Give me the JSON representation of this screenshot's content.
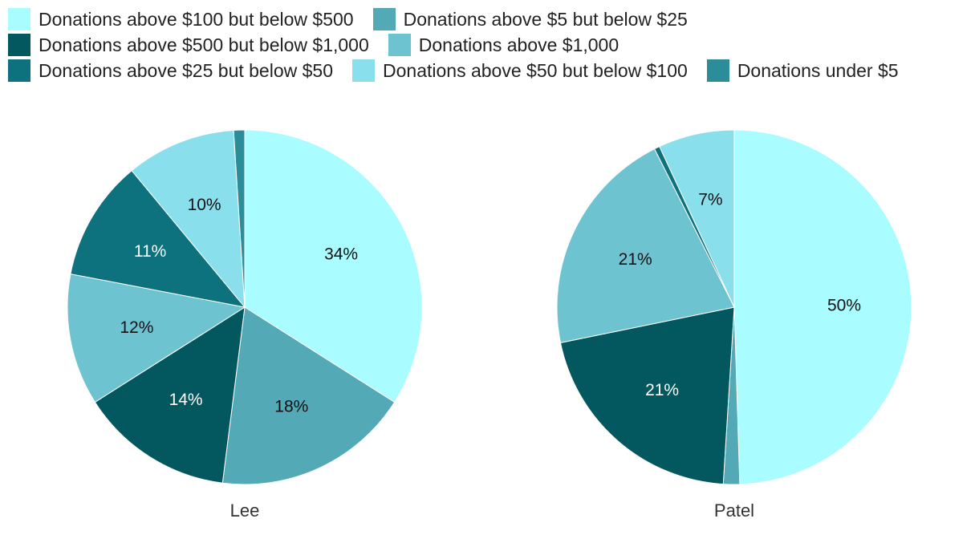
{
  "chart_data": {
    "type": "pie",
    "categories": [
      "Donations above $100 but below $500",
      "Donations above $5 but below $25",
      "Donations above $500 but below $1,000",
      "Donations above $1,000",
      "Donations above $25 but below $50",
      "Donations above $50 but below $100",
      "Donations under $5"
    ],
    "colors": [
      "#a9fcff",
      "#54a9b7",
      "#03575f",
      "#6ec3d1",
      "#0d717e",
      "#8adfed",
      "#2a8d99"
    ],
    "series": [
      {
        "name": "Lee",
        "values": [
          34,
          18,
          14,
          12,
          11,
          10,
          1
        ],
        "labels": [
          "34%",
          "18%",
          "14%",
          "12%",
          "11%",
          "10%",
          ""
        ]
      },
      {
        "name": "Patel",
        "values": [
          50,
          1.5,
          21,
          21,
          0.5,
          7,
          0
        ],
        "labels": [
          "50%",
          "",
          "21%",
          "21%",
          "",
          "7%",
          ""
        ]
      }
    ]
  }
}
